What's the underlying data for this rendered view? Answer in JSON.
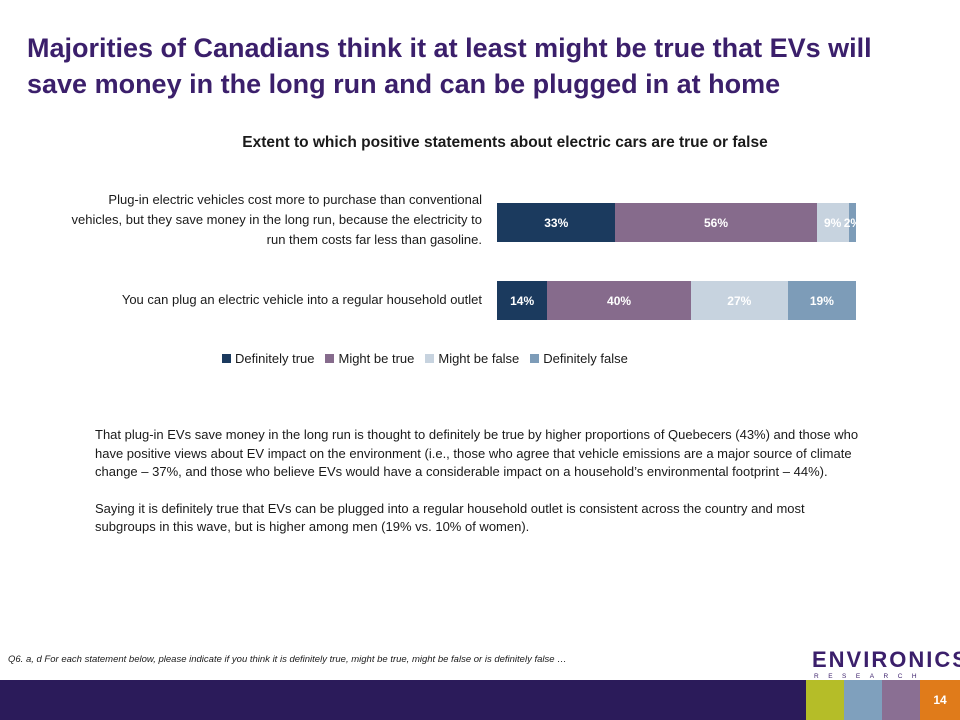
{
  "slide": {
    "title": "Majorities of Canadians think it at least might be true that EVs will save money in the long run and can be plugged in at home",
    "page_number": "14",
    "footnote": "Q6. a, d For each statement below, please indicate if you think it is definitely true, might be true, might be false or is definitely false …",
    "logo": {
      "main": "ENVIRONICS",
      "sub": "RESEARCH GROUP"
    },
    "body_paragraphs": [
      "That plug-in EVs save money in the long run is thought to definitely be true by higher proportions of Quebecers (43%) and those who have positive views about EV impact on the environment (i.e., those who agree that vehicle emissions are a major source of climate change – 37%, and those who believe EVs would have a considerable impact on a household’s environmental footprint – 44%).",
      "Saying it is definitely true that EVs can be plugged into a regular household outlet is consistent across the country and most subgroups in this wave, but is higher among men (19% vs. 10% of women)."
    ],
    "footer_colors": [
      "#b5bd28",
      "#7fa0bd",
      "#8a6f93",
      "#e07b1a"
    ]
  },
  "chart_data": {
    "type": "bar",
    "orientation": "horizontal",
    "stacked": true,
    "title": "Extent to which positive statements about electric cars are true or false",
    "categories": [
      "Plug-in electric vehicles cost more to purchase than conventional vehicles, but they save money in the long run, because the electricity to run them costs far less than gasoline.",
      "You can plug an electric vehicle into a regular household outlet"
    ],
    "series": [
      {
        "name": "Definitely true",
        "color": "#1b3a5e",
        "values": [
          33,
          14
        ],
        "labels": [
          "33%",
          "14%"
        ]
      },
      {
        "name": "Might be true",
        "color": "#866b8c",
        "values": [
          56,
          40
        ],
        "labels": [
          "56%",
          "40%"
        ]
      },
      {
        "name": "Might be false",
        "color": "#c7d3df",
        "values": [
          9,
          27
        ],
        "labels": [
          "9%",
          "27%"
        ]
      },
      {
        "name": "Definitely false",
        "color": "#7d9cb8",
        "values": [
          2,
          19
        ],
        "labels": [
          "2%",
          "19%"
        ]
      }
    ],
    "xlim": [
      0,
      100
    ],
    "legend": "bottom",
    "grid": false
  }
}
